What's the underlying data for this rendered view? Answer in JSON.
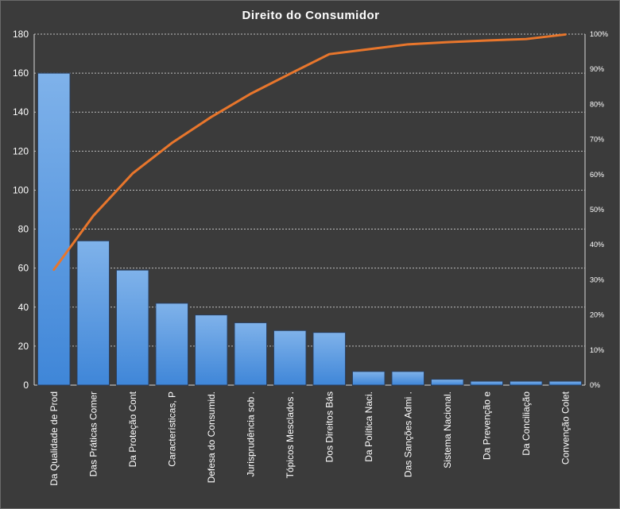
{
  "colors": {
    "background": "#3b3b3b",
    "bar_top": "#7fb2ea",
    "bar_bottom": "#3f86d8",
    "line": "#e8762c",
    "text": "#ffffff"
  },
  "chart_data": {
    "type": "bar",
    "title": "Direito do Consumidor",
    "categories": [
      "Da Qualidade de Prod",
      "Das Práticas Comer",
      "Da Proteção Cont",
      "Características, P",
      "Defesa do Consumid.",
      "Jurisprudência sob .",
      "Tópicos Mesclados .",
      "Dos Direitos Bás",
      "Da Política Naci.",
      "Das Sanções Admi .",
      "Sistema Nacional.",
      "Da Prevenção e",
      "Da Conciliação",
      "Convenção Colet"
    ],
    "values": [
      160,
      74,
      59,
      42,
      36,
      32,
      28,
      27,
      7,
      7,
      3,
      2,
      2,
      2
    ],
    "cumulative_percent": [
      32.9,
      48.2,
      60.3,
      69.0,
      76.4,
      83.0,
      88.7,
      94.3,
      95.7,
      97.1,
      97.7,
      98.2,
      98.6,
      99.9
    ],
    "ylim": [
      0,
      180
    ],
    "yticks": [
      "0",
      "20",
      "40",
      "60",
      "80",
      "100",
      "120",
      "140",
      "160",
      "180"
    ],
    "y2lim": [
      0,
      100
    ],
    "y2ticks": [
      "0%",
      "10%",
      "20%",
      "30%",
      "40%",
      "50%",
      "60%",
      "70%",
      "80%",
      "90%",
      "100%"
    ],
    "grid": true,
    "legend": "none"
  }
}
